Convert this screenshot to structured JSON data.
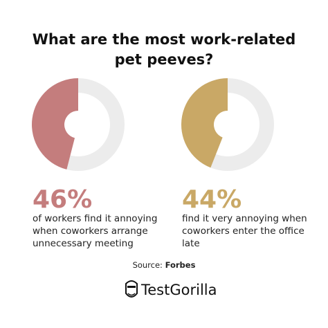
{
  "title": [
    "What are the most work-related",
    "pet peeves?"
  ],
  "chart_data": [
    {
      "type": "donut",
      "values": [
        46
      ],
      "value_labels": [
        "46%"
      ],
      "color": "#c47d7d",
      "description": [
        "of workers find it annoying",
        "when coworkers arrange",
        "unnecessary meeting"
      ]
    },
    {
      "type": "donut",
      "values": [
        44
      ],
      "value_labels": [
        "44%"
      ],
      "color": "#c9a866",
      "description": [
        "find it very annoying when",
        "coworkers enter the office",
        "late"
      ]
    }
  ],
  "source": {
    "label": "Source:",
    "name": "Forbes"
  },
  "brand": "TestGorilla"
}
